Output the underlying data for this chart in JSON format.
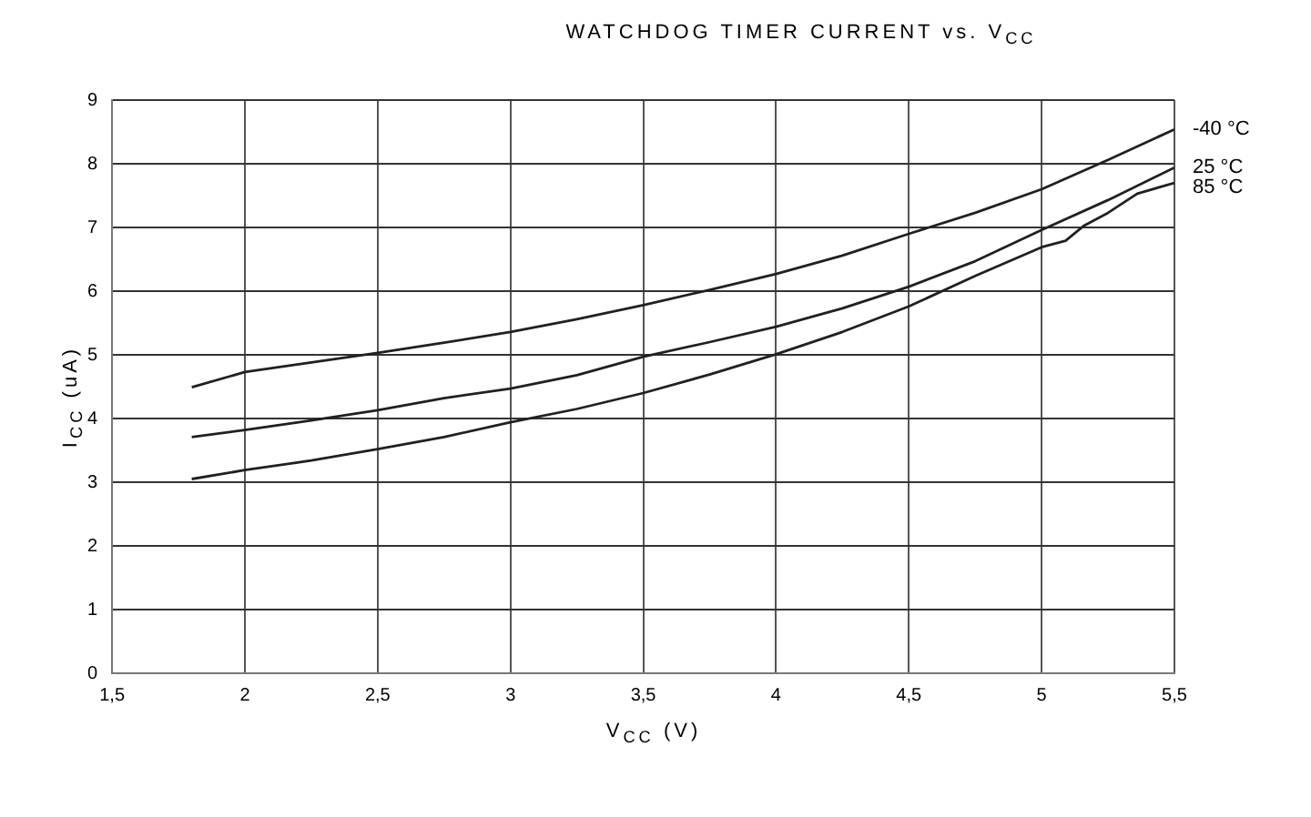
{
  "chart_data": {
    "type": "line",
    "title": "WATCHDOG TIMER CURRENT vs. V$_{CC}$",
    "xlabel": "V$_{CC}$ (V)",
    "ylabel": "I$_{CC}$ (uA)",
    "x": [
      1.8,
      2,
      2.25,
      2.5,
      2.75,
      3,
      3.25,
      3.5,
      3.75,
      4,
      4.25,
      4.5,
      4.75,
      5,
      5.25,
      5.5
    ],
    "series": [
      {
        "name": "-40 °C",
        "color": "#231f20",
        "values": [
          4.49,
          4.73,
          4.88,
          5.03,
          5.19,
          5.36,
          5.56,
          5.78,
          6.02,
          6.27,
          6.56,
          6.9,
          7.23,
          7.6,
          8.06,
          8.54
        ]
      },
      {
        "name": "25 °C",
        "color": "#231f20",
        "values": [
          3.71,
          3.82,
          3.97,
          4.13,
          4.32,
          4.47,
          4.68,
          4.97,
          5.2,
          5.44,
          5.73,
          6.07,
          6.47,
          6.96,
          7.43,
          7.94
        ]
      },
      {
        "name": "85 °C",
        "color": "#231f20",
        "x": [
          1.8,
          2,
          2.25,
          2.5,
          2.75,
          3,
          3.25,
          3.5,
          3.75,
          4,
          4.25,
          4.5,
          4.75,
          5,
          5.09,
          5.16,
          5.25,
          5.36,
          5.5
        ],
        "values": [
          3.05,
          3.19,
          3.34,
          3.52,
          3.71,
          3.94,
          4.15,
          4.4,
          4.69,
          5.01,
          5.36,
          5.76,
          6.24,
          6.69,
          6.79,
          7.03,
          7.23,
          7.53,
          7.7
        ]
      }
    ],
    "xlim": [
      1.5,
      5.5
    ],
    "xticks": [
      {
        "value": 1.5,
        "label": "1,5"
      },
      2,
      {
        "value": 2.5,
        "label": "2,5"
      },
      3,
      {
        "value": 3.5,
        "label": "3,5"
      },
      4,
      {
        "value": 4.5,
        "label": "4,5"
      },
      5,
      {
        "value": 5.5,
        "label": "5,5"
      }
    ],
    "ylim": [
      0,
      9
    ],
    "yticks": [
      0,
      1,
      2,
      3,
      4,
      5,
      6,
      7,
      8,
      9
    ],
    "grid": true,
    "legend": false,
    "marker": "none",
    "line_style": "solid"
  }
}
